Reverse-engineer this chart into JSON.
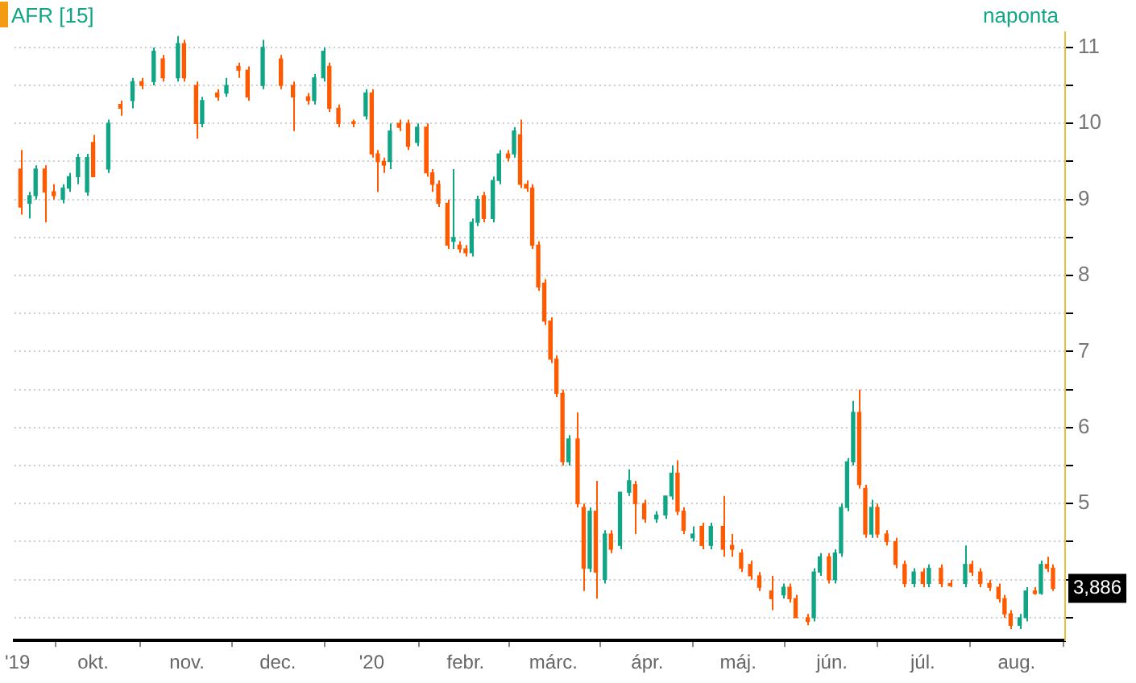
{
  "chart_data": {
    "type": "candlestick",
    "title": "AFR [15]",
    "subtitle": "naponta",
    "series": [
      {
        "color": "#10a585",
        "x": [
          "2019-09-10",
          "2019-09-12",
          "2019-09-21",
          "2019-09-23",
          "2019-09-26",
          "2019-09-29",
          "2019-10-06",
          "2019-10-14",
          "2019-10-21",
          "2019-10-29",
          "2019-11-06",
          "2019-11-14",
          "2019-11-26",
          "2019-12-13",
          "2019-12-16",
          "2019-12-30",
          "2020-01-07",
          "2020-01-16",
          "2020-01-28",
          "2020-02-03",
          "2020-02-05",
          "2020-02-10",
          "2020-02-12",
          "2020-02-17",
          "2020-03-06",
          "2020-03-13",
          "2020-03-18",
          "2020-03-23",
          "2020-03-26",
          "2020-04-04",
          "2020-04-07",
          "2020-04-09",
          "2020-04-16",
          "2020-04-22",
          "2020-05-16",
          "2020-05-26",
          "2020-05-28",
          "2020-06-02",
          "2020-06-04",
          "2020-06-06",
          "2020-06-08",
          "2020-06-14",
          "2020-06-28",
          "2020-07-03",
          "2020-07-15",
          "2020-08-02",
          "2020-08-04",
          "2020-08-09"
        ],
        "ohlc": [
          [
            8.95,
            9.1,
            8.75,
            9.05
          ],
          [
            9.05,
            9.45,
            9.0,
            9.4
          ],
          [
            9.0,
            9.2,
            8.95,
            9.15
          ],
          [
            9.15,
            9.35,
            9.1,
            9.3
          ],
          [
            9.3,
            9.6,
            9.2,
            9.55
          ],
          [
            9.1,
            9.6,
            9.05,
            9.55
          ],
          [
            9.4,
            10.05,
            9.35,
            10.0
          ],
          [
            10.3,
            10.6,
            10.2,
            10.55
          ],
          [
            10.55,
            11.0,
            10.5,
            10.95
          ],
          [
            10.6,
            11.15,
            10.55,
            11.05
          ],
          [
            10.0,
            10.35,
            9.95,
            10.3
          ],
          [
            10.4,
            10.6,
            10.35,
            10.5
          ],
          [
            10.5,
            11.1,
            10.45,
            11.0
          ],
          [
            10.3,
            10.65,
            10.25,
            10.6
          ],
          [
            10.6,
            11.0,
            10.55,
            10.95
          ],
          [
            10.1,
            10.45,
            10.05,
            10.4
          ],
          [
            9.5,
            10.0,
            9.4,
            9.9
          ],
          [
            9.75,
            10.0,
            9.7,
            9.95
          ],
          [
            8.45,
            9.4,
            8.35,
            8.5
          ],
          [
            8.3,
            8.75,
            8.25,
            8.7
          ],
          [
            8.7,
            9.05,
            8.65,
            9.0
          ],
          [
            8.75,
            9.3,
            8.7,
            9.25
          ],
          [
            9.25,
            9.65,
            9.2,
            9.6
          ],
          [
            9.6,
            9.95,
            9.55,
            9.9
          ],
          [
            5.55,
            5.9,
            5.5,
            5.85
          ],
          [
            4.15,
            4.95,
            4.1,
            4.9
          ],
          [
            4.0,
            4.65,
            3.95,
            4.6
          ],
          [
            4.45,
            5.15,
            4.4,
            5.15
          ],
          [
            5.15,
            5.45,
            5.1,
            5.3
          ],
          [
            4.8,
            4.9,
            4.75,
            4.85
          ],
          [
            4.85,
            5.1,
            4.8,
            5.1
          ],
          [
            5.1,
            5.5,
            5.05,
            5.4
          ],
          [
            4.55,
            4.7,
            4.5,
            4.6
          ],
          [
            4.45,
            4.75,
            4.4,
            4.7
          ],
          [
            3.8,
            3.95,
            3.75,
            3.9
          ],
          [
            3.5,
            4.15,
            3.45,
            4.1
          ],
          [
            4.1,
            4.35,
            4.05,
            4.3
          ],
          [
            4.0,
            4.4,
            3.95,
            4.35
          ],
          [
            4.35,
            5.0,
            4.3,
            4.95
          ],
          [
            4.95,
            5.6,
            4.9,
            5.55
          ],
          [
            5.55,
            6.35,
            5.5,
            6.2
          ],
          [
            4.6,
            5.05,
            4.55,
            4.95
          ],
          [
            3.95,
            4.15,
            3.9,
            4.1
          ],
          [
            3.95,
            4.2,
            3.9,
            4.15
          ],
          [
            3.95,
            4.45,
            3.9,
            4.2
          ],
          [
            3.4,
            3.55,
            3.35,
            3.5
          ],
          [
            3.5,
            3.9,
            3.45,
            3.85
          ],
          [
            3.82,
            4.25,
            3.8,
            4.2
          ]
        ]
      },
      {
        "color": "#ff5a00",
        "x": [
          "2019-09-07",
          "2019-09-15",
          "2019-09-18",
          "2019-10-01",
          "2019-10-10",
          "2019-10-17",
          "2019-10-24",
          "2019-10-31",
          "2019-11-04",
          "2019-11-11",
          "2019-11-18",
          "2019-11-21",
          "2019-12-02",
          "2019-12-06",
          "2019-12-11",
          "2019-12-18",
          "2019-12-21",
          "2019-12-26",
          "2020-01-01",
          "2020-01-03",
          "2020-01-05",
          "2020-01-10",
          "2020-01-13",
          "2020-01-19",
          "2020-01-21",
          "2020-01-23",
          "2020-01-26",
          "2020-01-30",
          "2020-02-01",
          "2020-02-07",
          "2020-02-15",
          "2020-02-19",
          "2020-02-21",
          "2020-02-23",
          "2020-02-25",
          "2020-02-27",
          "2020-02-29",
          "2020-03-02",
          "2020-03-04",
          "2020-03-09",
          "2020-03-11",
          "2020-03-15",
          "2020-03-20",
          "2020-03-28",
          "2020-03-31",
          "2020-04-11",
          "2020-04-13",
          "2020-04-19",
          "2020-04-26",
          "2020-04-29",
          "2020-05-02",
          "2020-05-05",
          "2020-05-08",
          "2020-05-12",
          "2020-05-18",
          "2020-05-20",
          "2020-05-24",
          "2020-05-31",
          "2020-06-10",
          "2020-06-12",
          "2020-06-16",
          "2020-06-19",
          "2020-06-22",
          "2020-06-25",
          "2020-07-01",
          "2020-07-07",
          "2020-07-10",
          "2020-07-17",
          "2020-07-20",
          "2020-07-23",
          "2020-07-26",
          "2020-07-28",
          "2020-07-30",
          "2020-08-07",
          "2020-08-11",
          "2020-08-13"
        ],
        "ohlc": [
          [
            9.4,
            9.65,
            8.8,
            8.9
          ],
          [
            9.4,
            9.45,
            8.7,
            9.1
          ],
          [
            9.1,
            9.2,
            9.0,
            9.05
          ],
          [
            9.75,
            9.85,
            9.3,
            9.3
          ],
          [
            10.25,
            10.3,
            10.1,
            10.2
          ],
          [
            10.55,
            10.6,
            10.45,
            10.5
          ],
          [
            10.85,
            10.9,
            10.55,
            10.6
          ],
          [
            11.05,
            11.1,
            10.55,
            10.6
          ],
          [
            10.5,
            10.55,
            9.8,
            10.0
          ],
          [
            10.4,
            10.45,
            10.3,
            10.35
          ],
          [
            10.75,
            10.8,
            10.6,
            10.7
          ],
          [
            10.7,
            10.75,
            10.3,
            10.35
          ],
          [
            10.85,
            10.9,
            10.45,
            10.5
          ],
          [
            10.5,
            10.55,
            9.9,
            10.35
          ],
          [
            10.35,
            10.4,
            10.25,
            10.3
          ],
          [
            10.75,
            10.8,
            10.15,
            10.2
          ],
          [
            10.2,
            10.25,
            9.95,
            10.0
          ],
          [
            10.0,
            10.05,
            9.95,
            10.0
          ],
          [
            10.4,
            10.45,
            9.55,
            9.6
          ],
          [
            9.6,
            9.65,
            9.1,
            9.5
          ],
          [
            9.5,
            9.55,
            9.35,
            9.45
          ],
          [
            10.0,
            10.05,
            9.9,
            9.95
          ],
          [
            10.0,
            10.05,
            9.65,
            9.7
          ],
          [
            9.95,
            10.0,
            9.3,
            9.35
          ],
          [
            9.35,
            9.4,
            9.1,
            9.2
          ],
          [
            9.2,
            9.25,
            8.9,
            8.95
          ],
          [
            8.95,
            9.0,
            8.35,
            8.4
          ],
          [
            8.4,
            8.45,
            8.3,
            8.35
          ],
          [
            8.35,
            8.4,
            8.25,
            8.3
          ],
          [
            9.05,
            9.1,
            8.7,
            8.75
          ],
          [
            9.6,
            9.65,
            9.5,
            9.55
          ],
          [
            9.85,
            10.05,
            9.15,
            9.2
          ],
          [
            9.2,
            9.25,
            9.1,
            9.15
          ],
          [
            9.15,
            9.2,
            8.35,
            8.4
          ],
          [
            8.4,
            8.45,
            7.8,
            7.85
          ],
          [
            7.9,
            7.95,
            7.35,
            7.4
          ],
          [
            7.4,
            7.45,
            6.85,
            6.9
          ],
          [
            6.9,
            6.95,
            6.4,
            6.45
          ],
          [
            6.45,
            6.5,
            5.5,
            5.55
          ],
          [
            5.85,
            6.2,
            4.95,
            5.0
          ],
          [
            4.95,
            5.0,
            3.85,
            4.15
          ],
          [
            4.9,
            5.3,
            3.75,
            4.1
          ],
          [
            4.6,
            4.65,
            4.35,
            4.4
          ],
          [
            5.25,
            5.3,
            4.6,
            5.0
          ],
          [
            5.0,
            5.05,
            4.75,
            4.8
          ],
          [
            5.4,
            5.57,
            4.85,
            4.9
          ],
          [
            4.9,
            4.95,
            4.6,
            4.65
          ],
          [
            4.7,
            4.75,
            4.4,
            4.45
          ],
          [
            4.7,
            5.1,
            4.3,
            4.4
          ],
          [
            4.45,
            4.6,
            4.3,
            4.4
          ],
          [
            4.35,
            4.4,
            4.1,
            4.15
          ],
          [
            4.2,
            4.25,
            4.0,
            4.05
          ],
          [
            4.05,
            4.1,
            3.85,
            3.9
          ],
          [
            3.85,
            4.05,
            3.6,
            3.75
          ],
          [
            3.9,
            3.95,
            3.7,
            3.75
          ],
          [
            3.75,
            3.8,
            3.5,
            3.5
          ],
          [
            3.5,
            3.55,
            3.4,
            3.45
          ],
          [
            4.3,
            4.35,
            3.95,
            4.0
          ],
          [
            6.2,
            6.5,
            5.2,
            5.25
          ],
          [
            5.2,
            5.25,
            4.55,
            4.6
          ],
          [
            4.95,
            5.0,
            4.55,
            4.6
          ],
          [
            4.6,
            4.65,
            4.45,
            4.5
          ],
          [
            4.5,
            4.55,
            4.15,
            4.2
          ],
          [
            4.2,
            4.25,
            3.9,
            3.95
          ],
          [
            4.1,
            4.15,
            3.9,
            3.95
          ],
          [
            4.15,
            4.2,
            3.9,
            3.95
          ],
          [
            3.95,
            4.0,
            3.9,
            3.92
          ],
          [
            4.2,
            4.25,
            4.05,
            4.1
          ],
          [
            4.1,
            4.15,
            3.9,
            3.95
          ],
          [
            3.95,
            4.0,
            3.85,
            3.9
          ],
          [
            3.9,
            3.95,
            3.7,
            3.75
          ],
          [
            3.75,
            3.8,
            3.5,
            3.55
          ],
          [
            3.55,
            3.6,
            3.35,
            3.4
          ],
          [
            3.85,
            3.9,
            3.8,
            3.82
          ],
          [
            4.2,
            4.3,
            4.1,
            4.15
          ],
          [
            4.15,
            4.2,
            3.85,
            3.886
          ]
        ]
      }
    ],
    "xlim": [
      "2019-09-05",
      "2020-08-17"
    ],
    "xticks": [
      {
        "value": "2019-09-06",
        "label": "'19"
      },
      {
        "value": "2019-10-01",
        "label": "okt."
      },
      {
        "value": "2019-11-01",
        "label": "nov."
      },
      {
        "value": "2019-12-01",
        "label": "dec."
      },
      {
        "value": "2020-01-01",
        "label": "'20"
      },
      {
        "value": "2020-02-01",
        "label": "febr."
      },
      {
        "value": "2020-03-01",
        "label": "márc."
      },
      {
        "value": "2020-04-01",
        "label": "ápr."
      },
      {
        "value": "2020-05-01",
        "label": "máj."
      },
      {
        "value": "2020-06-01",
        "label": "jún."
      },
      {
        "value": "2020-07-01",
        "label": "júl."
      },
      {
        "value": "2020-08-01",
        "label": "aug."
      }
    ],
    "ylim": [
      3.2,
      11.2
    ],
    "yticks": [
      {
        "value": 3.5,
        "label": null
      },
      {
        "value": 4,
        "label": null
      },
      {
        "value": 4.5,
        "label": null
      },
      5,
      {
        "value": 5.5,
        "label": null
      },
      6,
      {
        "value": 6.5,
        "label": null
      },
      7,
      {
        "value": 7.5,
        "label": null
      },
      8,
      {
        "value": 8.5,
        "label": null
      },
      9,
      {
        "value": 9.5,
        "label": null
      },
      10,
      {
        "value": 10.5,
        "label": null
      },
      11
    ],
    "grid": true,
    "annotations": [
      "3,886"
    ]
  }
}
